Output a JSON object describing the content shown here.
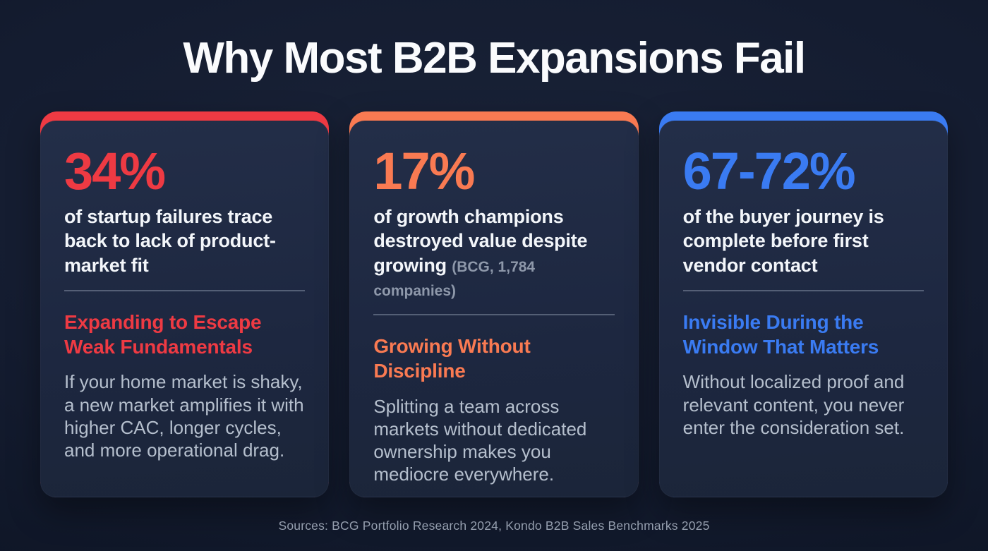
{
  "page": {
    "title": "Why Most B2B Expansions Fail",
    "footer": "Sources: BCG Portfolio Research 2024, Kondo B2B Sales Benchmarks 2025"
  },
  "colors": {
    "background": "#121a2d",
    "card_background": "#1f2940",
    "accent_red": "#ee3a43",
    "accent_orange": "#f97a52",
    "accent_blue": "#3a7bf2",
    "stat_description_white": "#f3f6fa",
    "body_gray": "#b5bfcd",
    "note_gray": "#8e98aa",
    "footer_gray": "#959eae"
  },
  "cards": [
    {
      "accent": "#ee3a43",
      "stat": "34%",
      "stat_description": "of startup failures trace back to lack of product-market fit",
      "stat_note": "",
      "heading": "Expanding to Escape Weak Fundamentals",
      "body": "If your home market is shaky, a new market amplifies it with higher CAC, longer cycles, and more operational drag."
    },
    {
      "accent": "#f97a52",
      "stat": "17%",
      "stat_description": "of growth champions destroyed value despite growing",
      "stat_note": "(BCG, 1,784 companies)",
      "heading": "Growing Without Discipline",
      "body": "Splitting a team across markets without dedicated ownership makes you mediocre everywhere."
    },
    {
      "accent": "#3a7bf2",
      "stat": "67-72%",
      "stat_description": "of the buyer journey is complete before first vendor contact",
      "stat_note": "",
      "heading": "Invisible During the Window That Matters",
      "body": "Without localized proof and relevant content, you never enter the consideration set."
    }
  ]
}
